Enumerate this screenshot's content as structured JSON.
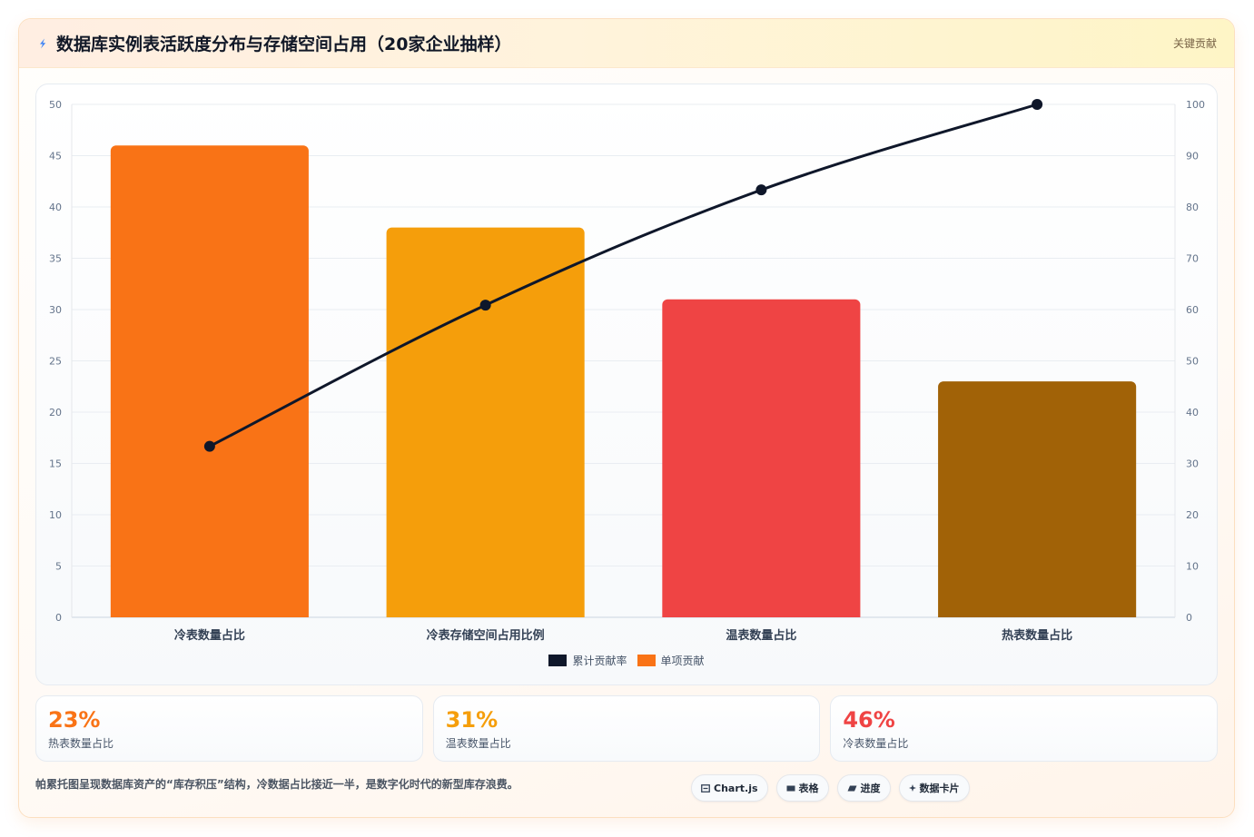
{
  "header": {
    "icon": "lightning-icon",
    "title": "数据库实例表活跃度分布与存储空间占用（20家企业抽样）",
    "badge": "关键贡献"
  },
  "chart_data": {
    "type": "bar",
    "categories": [
      "冷表数量占比",
      "冷表存储空间占用比例",
      "温表数量占比",
      "热表数量占比"
    ],
    "series": [
      {
        "name": "累计贡献率",
        "type": "line",
        "axis": "right",
        "values": [
          33.33,
          60.87,
          83.33,
          100
        ],
        "color": "#0F172A"
      },
      {
        "name": "单项贡献",
        "type": "bar",
        "axis": "left",
        "values": [
          46,
          38,
          31,
          23
        ],
        "colors": [
          "#F97316",
          "#F59E0B",
          "#EF4444",
          "#A16207"
        ]
      }
    ],
    "ylim": [
      0,
      50
    ],
    "yticks": [
      0,
      5,
      10,
      15,
      20,
      25,
      30,
      35,
      40,
      45,
      50
    ],
    "y2lim": [
      0,
      100
    ],
    "y2ticks": [
      0,
      10,
      20,
      30,
      40,
      50,
      60,
      70,
      80,
      90,
      100
    ],
    "grid": true,
    "legend": "bottom"
  },
  "stats": [
    {
      "value": "23%",
      "label": "热表数量占比",
      "color": "#F97316"
    },
    {
      "value": "31%",
      "label": "温表数量占比",
      "color": "#F59E0B"
    },
    {
      "value": "46%",
      "label": "冷表数量占比",
      "color": "#EF4444"
    }
  ],
  "footer": {
    "note": "帕累托图呈现数据库资产的“库存积压”结构，冷数据占比接近一半，是数字化时代的新型库存浪费。",
    "tags": [
      {
        "icon": "chart-icon",
        "label": "Chart.js"
      },
      {
        "icon": "table-icon",
        "label": "表格"
      },
      {
        "icon": "progress-icon",
        "label": "进度"
      },
      {
        "icon": "sparkle-icon",
        "label": "数据卡片"
      }
    ]
  }
}
